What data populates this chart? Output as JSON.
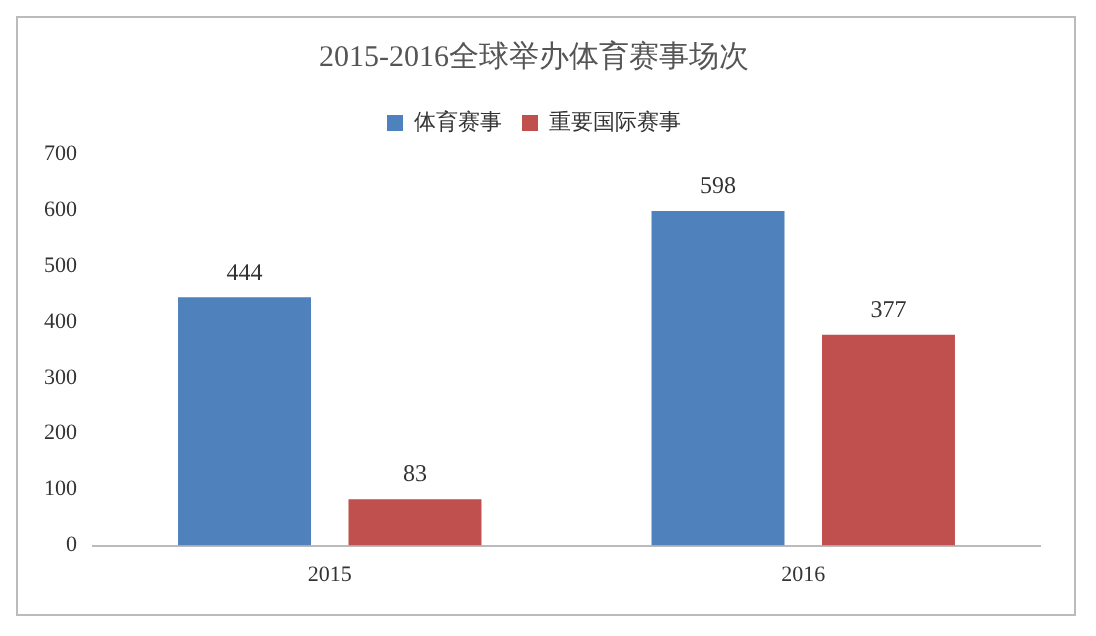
{
  "chart_data": {
    "type": "bar",
    "title": "2015-2016全球举办体育赛事场次",
    "categories": [
      "2015",
      "2016"
    ],
    "series": [
      {
        "name": "体育赛事",
        "color": "#4f81bd",
        "values": [
          444,
          598
        ]
      },
      {
        "name": "重要国际赛事",
        "color": "#c0504d",
        "values": [
          83,
          377
        ]
      }
    ],
    "ylim": [
      0,
      700
    ],
    "yticks": [
      0,
      100,
      200,
      300,
      400,
      500,
      600,
      700
    ],
    "grid": false,
    "legend": "top",
    "data_labels": true
  }
}
